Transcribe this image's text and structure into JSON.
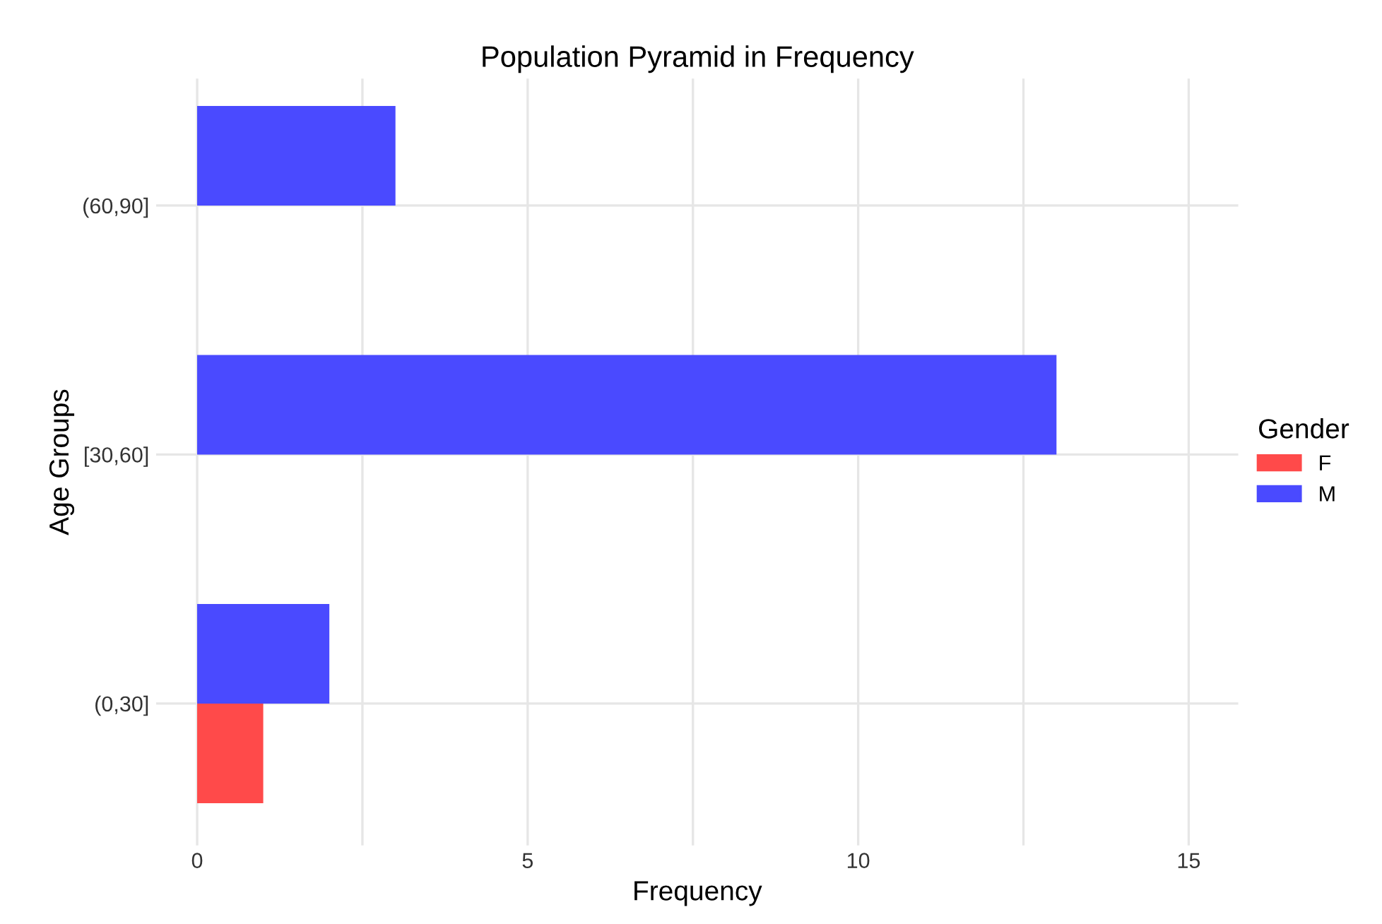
{
  "chart_data": {
    "type": "bar",
    "orientation": "horizontal",
    "title": "Population Pyramid in Frequency",
    "xlabel": "Frequency",
    "ylabel": "Age Groups",
    "categories": [
      "(60,90]",
      "[30,60]",
      "(0,30]"
    ],
    "series": [
      {
        "name": "F",
        "color": "#ff4a4a",
        "values": [
          null,
          null,
          1
        ]
      },
      {
        "name": "M",
        "color": "#4a4aff",
        "values": [
          3,
          13,
          2
        ]
      }
    ],
    "xlim": [
      -0.62,
      15.75
    ],
    "xticks": [
      0,
      {
        "value": 2.5,
        "label": null
      },
      5,
      {
        "value": 7.5,
        "label": null
      },
      10,
      {
        "value": 12.5,
        "label": null
      },
      15
    ],
    "legend_title": "Gender",
    "legend": "right",
    "grid": true
  }
}
